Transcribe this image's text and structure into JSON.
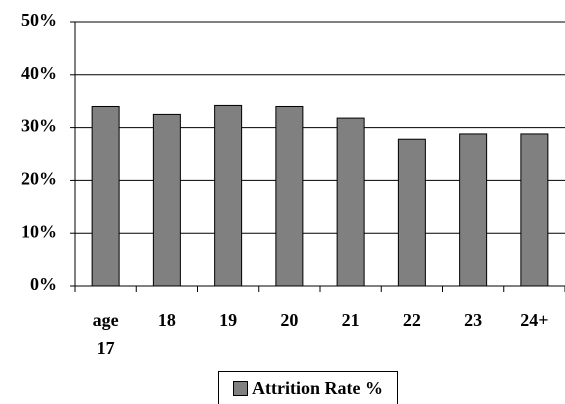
{
  "chart_data": {
    "type": "bar",
    "categories": [
      "age 17",
      "18",
      "19",
      "20",
      "21",
      "22",
      "23",
      "24+"
    ],
    "series": [
      {
        "name": "Attrition Rate %",
        "color": "#808080",
        "values": [
          34,
          32.5,
          34.2,
          34,
          31.8,
          27.8,
          28.8,
          28.8
        ]
      }
    ],
    "ylim": [
      0,
      50
    ],
    "yticks": [
      {
        "value": 0,
        "label": "0%"
      },
      {
        "value": 10,
        "label": "10%"
      },
      {
        "value": 20,
        "label": "20%"
      },
      {
        "value": 30,
        "label": "30%"
      },
      {
        "value": 40,
        "label": "40%"
      },
      {
        "value": 50,
        "label": "50%"
      }
    ],
    "grid": true,
    "legend": "bottom"
  }
}
